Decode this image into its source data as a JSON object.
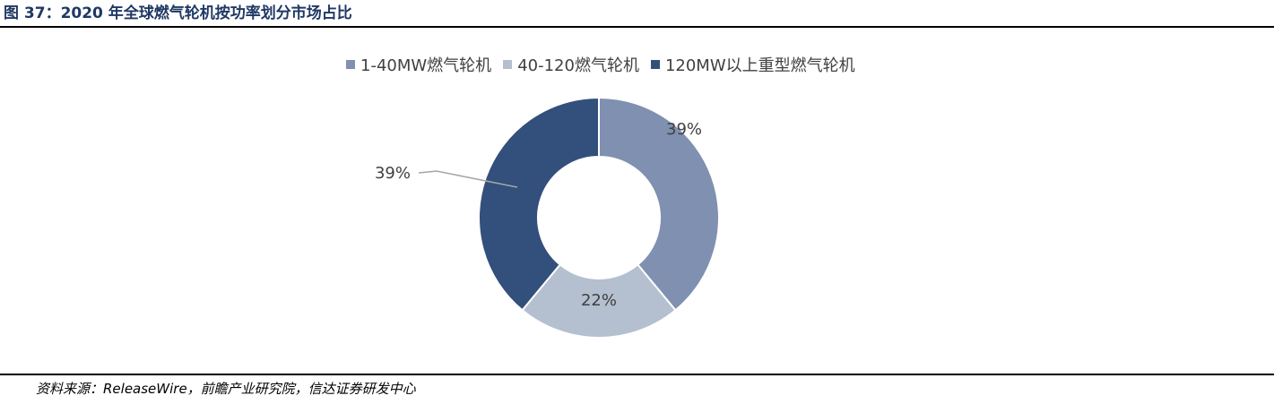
{
  "title": "图 37：2020 年全球燃气轮机按功率划分市场占比",
  "source": "资料来源：ReleaseWire，前瞻产业研究院，信达证券研发中心",
  "chart_data": {
    "type": "pie",
    "variant": "donut",
    "title": "",
    "legend_position": "top",
    "categories": [
      "1-40MW燃气轮机",
      "40-120燃气轮机",
      "120MW以上重型燃气轮机"
    ],
    "values": [
      39,
      22,
      39
    ],
    "value_labels": [
      "39%",
      "22%",
      "39%"
    ],
    "colors": [
      "#7f90b0",
      "#b4bfd0",
      "#334f7b"
    ]
  }
}
